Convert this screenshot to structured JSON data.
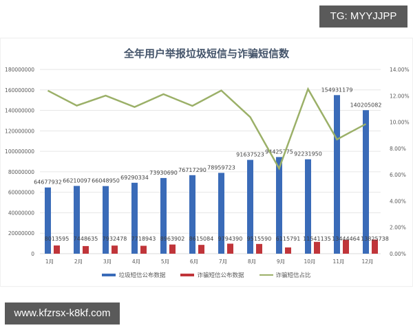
{
  "watermarks": {
    "top": "TG: MYYJJPP",
    "bottom": "www.kfzrsx-k8kf.com"
  },
  "colors": {
    "spam_bar": "#3a6bb8",
    "fraud_bar": "#c0353a",
    "ratio_line": "#9bb068",
    "grid": "#e6e6e6"
  },
  "chart_data": {
    "type": "bar",
    "title": "全年用户举报垃圾短信与诈骗短信数",
    "xlabel": "",
    "ylabel": "",
    "categories": [
      "1月",
      "2月",
      "3月",
      "4月",
      "5月",
      "6月",
      "7月",
      "8月",
      "9月",
      "10月",
      "11月",
      "12月"
    ],
    "series": [
      {
        "name": "垃圾短信公布数据",
        "type": "bar",
        "axis": "left",
        "values": [
          64677932,
          66210097,
          66048950,
          69290334,
          73930690,
          76717290,
          78959723,
          91637523,
          94425775,
          92231950,
          154931179,
          140205082
        ]
      },
      {
        "name": "诈骗短信公布数据",
        "type": "bar",
        "axis": "left",
        "values": [
          8013595,
          7448635,
          7932478,
          7718943,
          8963902,
          8615084,
          9794390,
          9515590,
          6115791,
          11541135,
          13444464,
          13825738
        ]
      },
      {
        "name": "诈骗短信占比",
        "type": "line",
        "axis": "right",
        "values": [
          12.39,
          11.25,
          12.01,
          11.14,
          12.12,
          11.23,
          12.4,
          10.38,
          6.48,
          12.51,
          8.68,
          9.86
        ]
      }
    ],
    "left_axis": {
      "ylim": [
        0,
        180000000
      ],
      "ticks": [
        "0",
        "20000000",
        "40000000",
        "60000000",
        "80000000",
        "100000000",
        "120000000",
        "140000000",
        "160000000",
        "180000000"
      ]
    },
    "right_axis": {
      "ylim": [
        0,
        14
      ],
      "ticks": [
        "0.00%",
        "2.00%",
        "4.00%",
        "6.00%",
        "8.00%",
        "10.00%",
        "12.00%",
        "14.00%"
      ]
    },
    "grid": true,
    "legend_position": "bottom"
  },
  "legend": [
    {
      "label": "垃圾短信公布数据",
      "kind": "bar",
      "color": "#3a6bb8"
    },
    {
      "label": "诈骗短信公布数据",
      "kind": "bar",
      "color": "#c0353a"
    },
    {
      "label": "诈骗短信占比",
      "kind": "line",
      "color": "#9bb068"
    }
  ]
}
